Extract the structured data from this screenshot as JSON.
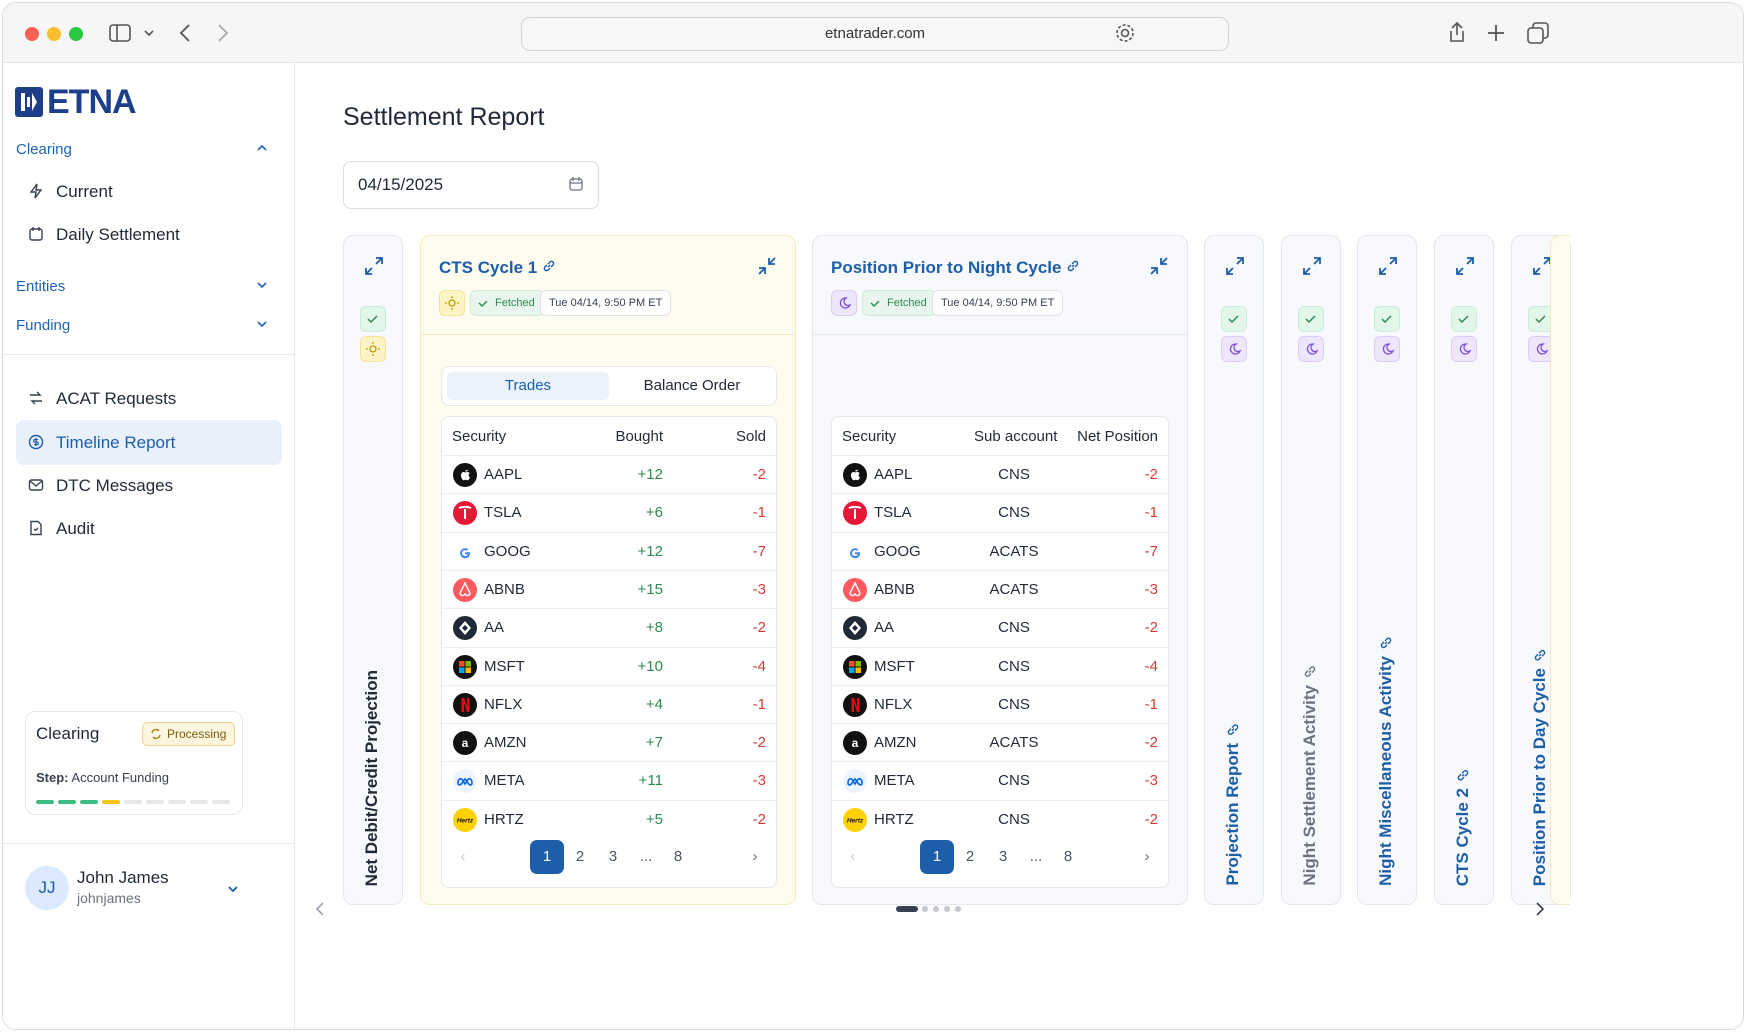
{
  "browser": {
    "url": "etnatrader.com"
  },
  "sidebar": {
    "brand": "ETNA",
    "sections": {
      "clearing": "Clearing",
      "entities": "Entities",
      "funding": "Funding"
    },
    "clearing_items": [
      {
        "label": "Current",
        "icon": "bolt-icon"
      },
      {
        "label": "Daily Settlement",
        "icon": "calendar-icon"
      }
    ],
    "items": [
      {
        "label": "ACAT Requests",
        "icon": "transfer-icon"
      },
      {
        "label": "Timeline Report",
        "icon": "dollar-circle-icon",
        "active": true
      },
      {
        "label": "DTC Messages",
        "icon": "mail-icon"
      },
      {
        "label": "Audit",
        "icon": "document-icon"
      }
    ],
    "status": {
      "title": "Clearing",
      "badge": "Processing",
      "step_label": "Step:",
      "step_value": "Account Funding",
      "progress_done": 3,
      "progress_current": 1,
      "progress_total": 9
    },
    "user": {
      "initials": "JJ",
      "name": "John James",
      "handle": "johnjames"
    }
  },
  "page": {
    "title": "Settlement Report",
    "date": "04/15/2025"
  },
  "collapsed_left": {
    "title": "Net Debit/Credit Projection"
  },
  "card1": {
    "title": "CTS Cycle 1",
    "status": "Fetched",
    "timestamp": "Tue 04/14, 9:50 PM ET",
    "tabs": [
      "Trades",
      "Balance Order"
    ],
    "active_tab": "Trades",
    "headers": [
      "Security",
      "Bought",
      "Sold"
    ],
    "rows": [
      [
        "AAPL",
        "+12",
        "-2"
      ],
      [
        "TSLA",
        "+6",
        "-1"
      ],
      [
        "GOOG",
        "+12",
        "-7"
      ],
      [
        "ABNB",
        "+15",
        "-3"
      ],
      [
        "AA",
        "+8",
        "-2"
      ],
      [
        "MSFT",
        "+10",
        "-4"
      ],
      [
        "NFLX",
        "+4",
        "-1"
      ],
      [
        "AMZN",
        "+7",
        "-2"
      ],
      [
        "META",
        "+11",
        "-3"
      ],
      [
        "HRTZ",
        "+5",
        "-2"
      ]
    ],
    "pages": [
      "1",
      "2",
      "3",
      "...",
      "8"
    ]
  },
  "card2": {
    "title": "Position Prior to Night Cycle",
    "status": "Fetched",
    "timestamp": "Tue 04/14, 9:50 PM ET",
    "headers": [
      "Security",
      "Sub account",
      "Net Position"
    ],
    "rows": [
      [
        "AAPL",
        "CNS",
        "-2"
      ],
      [
        "TSLA",
        "CNS",
        "-1"
      ],
      [
        "GOOG",
        "ACATS",
        "-7"
      ],
      [
        "ABNB",
        "ACATS",
        "-3"
      ],
      [
        "AA",
        "CNS",
        "-2"
      ],
      [
        "MSFT",
        "CNS",
        "-4"
      ],
      [
        "NFLX",
        "CNS",
        "-1"
      ],
      [
        "AMZN",
        "ACATS",
        "-2"
      ],
      [
        "META",
        "CNS",
        "-3"
      ],
      [
        "HRTZ",
        "CNS",
        "-2"
      ]
    ],
    "pages": [
      "1",
      "2",
      "3",
      "...",
      "8"
    ]
  },
  "collapsed_right": [
    {
      "title": "Projection Report",
      "color": "#1d5ea8"
    },
    {
      "title": "Night Settlement Activity",
      "color": "#6b7280"
    },
    {
      "title": "Night Miscellaneous Activity",
      "color": "#1d5ea8"
    },
    {
      "title": "CTS Cycle 2",
      "color": "#1d5ea8"
    },
    {
      "title": "Position Prior to Day Cycle",
      "color": "#1d5ea8"
    }
  ],
  "colors": {
    "accent": "#1d5ea8",
    "positive": "#2f8a52",
    "negative": "#d83a3a"
  }
}
